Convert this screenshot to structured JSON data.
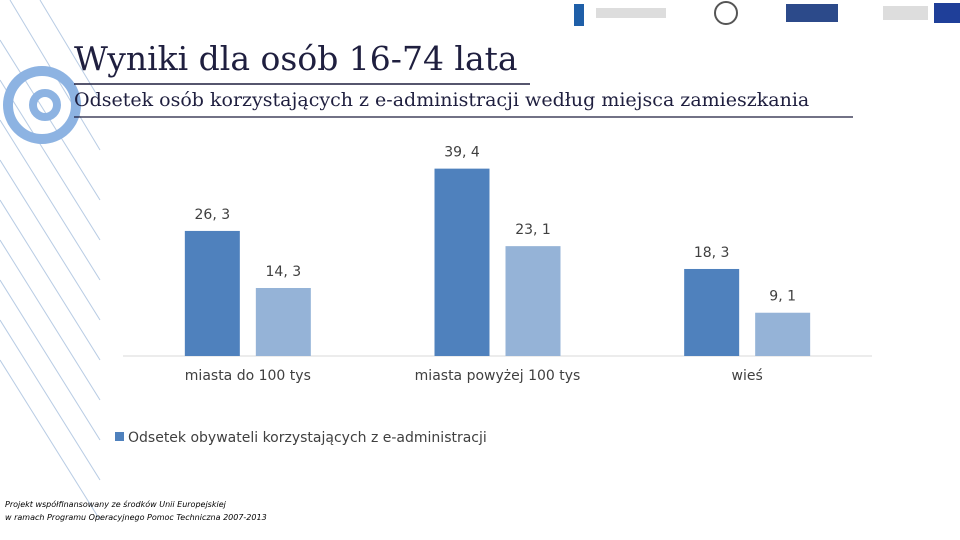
{
  "slide": {
    "title": "Wyniki dla osób 16-74 lata",
    "footer": [
      "Projekt współfinansowany ze środków Unii Europejskiej",
      "w ramach Programu Operacyjnego Pomoc Techniczna 2007-2013"
    ]
  },
  "chart_data": {
    "type": "bar",
    "title": "Odsetek osób korzystających z e-administracji według miejsca zamieszkania",
    "categories": [
      "miasta do 100 tys",
      "miasta powyżej 100 tys",
      "wieś"
    ],
    "series": [
      {
        "name": "Odsetek obywateli korzystających z e-administracji",
        "color": "#4f81bd",
        "values": [
          26.3,
          39.4,
          18.3
        ],
        "value_labels": [
          "26, 3",
          "39, 4",
          "18, 3"
        ]
      },
      {
        "color": "#95b3d7",
        "values": [
          14.3,
          23.1,
          9.1
        ],
        "value_labels": [
          "14, 3",
          "23, 1",
          "9, 1"
        ]
      }
    ],
    "ylim": [
      0,
      45
    ],
    "legend": "bottom-left"
  }
}
